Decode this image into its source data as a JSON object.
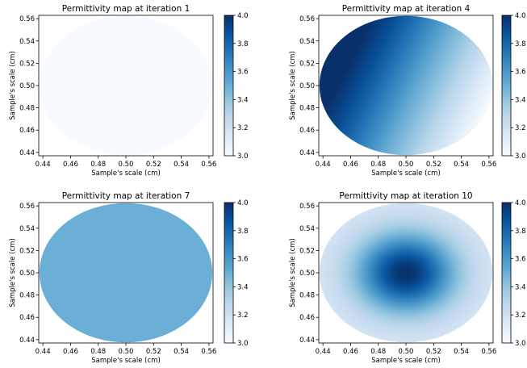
{
  "colormap": "Blues",
  "colormap_stops": [
    "#f7fbff",
    "#deebf7",
    "#c6dbef",
    "#9ecae1",
    "#6baed6",
    "#4292c6",
    "#2171b5",
    "#08519c",
    "#08306b"
  ],
  "chart_data": [
    {
      "type": "heatmap",
      "title": "Permittivity map at iteration 1",
      "xlabel": "Sample's scale (cm)",
      "ylabel": "Sample's scale (cm)",
      "xlim": [
        0.437,
        0.563
      ],
      "ylim": [
        0.437,
        0.563
      ],
      "xticks": [
        "0.44",
        "0.46",
        "0.48",
        "0.50",
        "0.52",
        "0.54",
        "0.56"
      ],
      "yticks": [
        "0.44",
        "0.46",
        "0.48",
        "0.50",
        "0.52",
        "0.54",
        "0.56"
      ],
      "region": {
        "shape": "disk",
        "center": [
          0.5,
          0.5
        ],
        "radius": 0.0625
      },
      "field": {
        "kind": "uniform",
        "value": 3.0
      },
      "colorbar": {
        "range": [
          3.0,
          4.0
        ],
        "ticks": [
          "3.0",
          "3.2",
          "3.4",
          "3.6",
          "3.8",
          "4.0"
        ]
      }
    },
    {
      "type": "heatmap",
      "title": "Permittivity map at iteration 4",
      "xlabel": "Sample's scale (cm)",
      "ylabel": "Sample's scale (cm)",
      "xlim": [
        0.437,
        0.563
      ],
      "ylim": [
        0.437,
        0.563
      ],
      "xticks": [
        "0.44",
        "0.46",
        "0.48",
        "0.50",
        "0.52",
        "0.54",
        "0.56"
      ],
      "yticks": [
        "0.44",
        "0.46",
        "0.48",
        "0.50",
        "0.52",
        "0.54",
        "0.56"
      ],
      "region": {
        "shape": "disk",
        "center": [
          0.5,
          0.5
        ],
        "radius": 0.0625
      },
      "field": {
        "kind": "gradient",
        "center_value": 3.6,
        "gradient_per_cm": [
          -8.0,
          5.0
        ]
      },
      "colorbar": {
        "range": [
          3.0,
          4.0
        ],
        "ticks": [
          "3.0",
          "3.2",
          "3.4",
          "3.6",
          "3.8",
          "4.0"
        ]
      }
    },
    {
      "type": "heatmap",
      "title": "Permittivity map at iteration 7",
      "xlabel": "Sample's scale (cm)",
      "ylabel": "Sample's scale (cm)",
      "xlim": [
        0.437,
        0.563
      ],
      "ylim": [
        0.437,
        0.563
      ],
      "xticks": [
        "0.44",
        "0.46",
        "0.48",
        "0.50",
        "0.52",
        "0.54",
        "0.56"
      ],
      "yticks": [
        "0.44",
        "0.46",
        "0.48",
        "0.50",
        "0.52",
        "0.54",
        "0.56"
      ],
      "region": {
        "shape": "disk",
        "center": [
          0.5,
          0.5
        ],
        "radius": 0.0625
      },
      "field": {
        "kind": "uniform",
        "value": 3.5
      },
      "colorbar": {
        "range": [
          3.0,
          4.0
        ],
        "ticks": [
          "3.0",
          "3.2",
          "3.4",
          "3.6",
          "3.8",
          "4.0"
        ]
      }
    },
    {
      "type": "heatmap",
      "title": "Permittivity map at iteration 10",
      "xlabel": "Sample's scale (cm)",
      "ylabel": "Sample's scale (cm)",
      "xlim": [
        0.437,
        0.563
      ],
      "ylim": [
        0.437,
        0.563
      ],
      "xticks": [
        "0.44",
        "0.46",
        "0.48",
        "0.50",
        "0.52",
        "0.54",
        "0.56"
      ],
      "yticks": [
        "0.44",
        "0.46",
        "0.48",
        "0.50",
        "0.52",
        "0.54",
        "0.56"
      ],
      "region": {
        "shape": "disk",
        "center": [
          0.5,
          0.5
        ],
        "radius": 0.0625
      },
      "field": {
        "kind": "gaussian",
        "base_value": 3.15,
        "peak_value": 4.0,
        "sigma_cm": 0.025
      },
      "colorbar": {
        "range": [
          3.0,
          4.0
        ],
        "ticks": [
          "3.0",
          "3.2",
          "3.4",
          "3.6",
          "3.8",
          "4.0"
        ]
      }
    }
  ]
}
